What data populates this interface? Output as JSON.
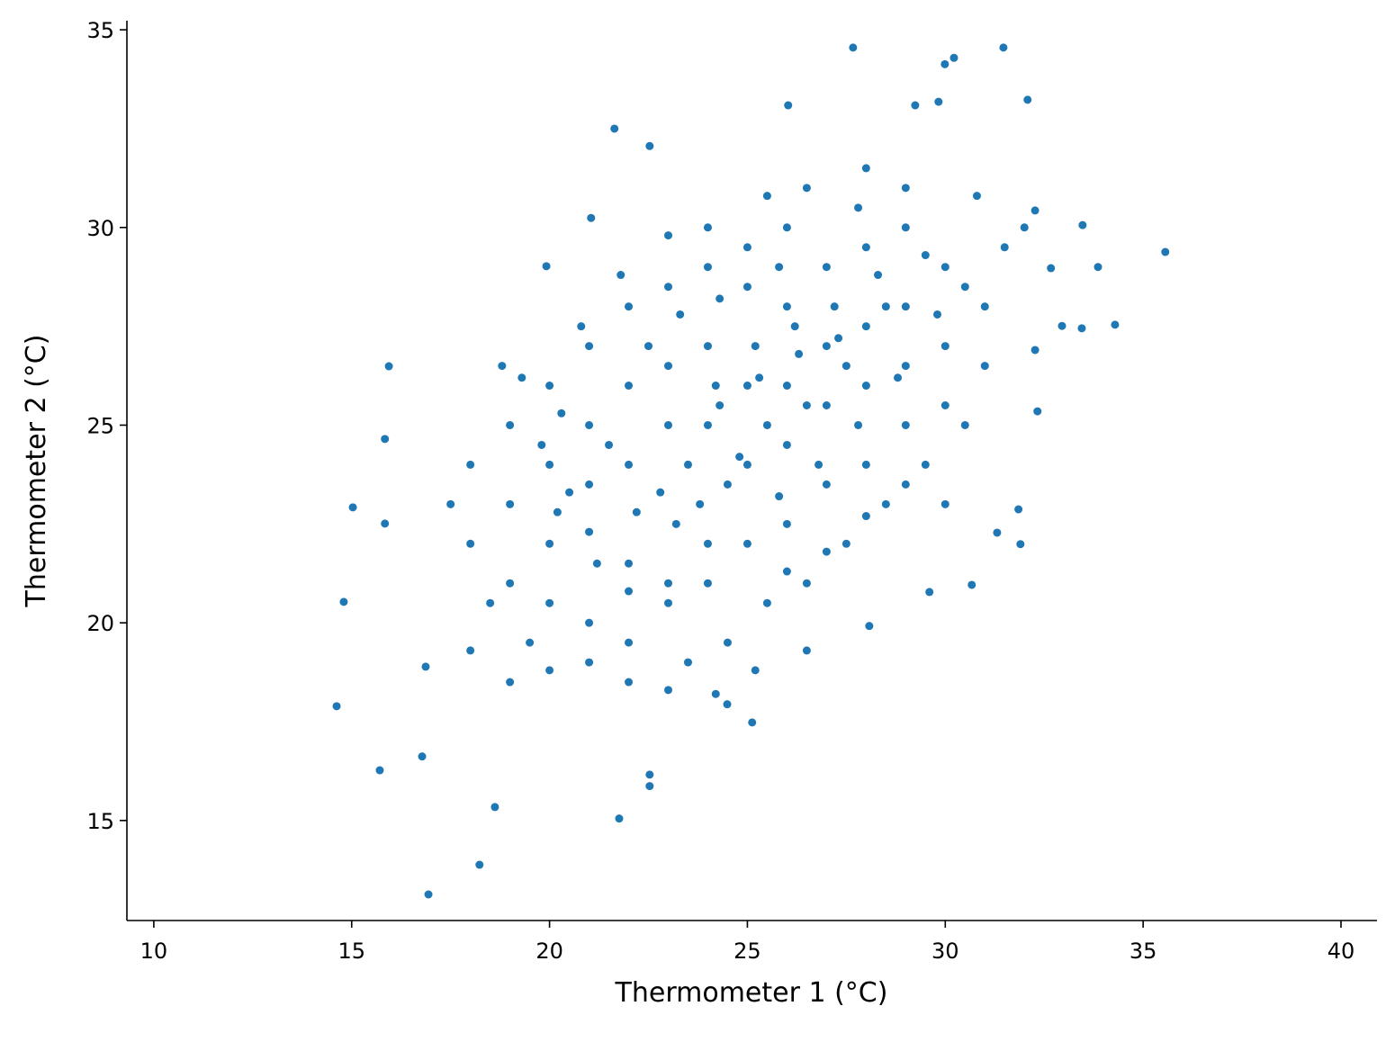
{
  "chart_data": {
    "type": "scatter",
    "xlabel": "Thermometer 1 (°C)",
    "ylabel": "Thermometer 2 (°C)",
    "color": "#1f77b4",
    "xlim": [
      9.32,
      40.91
    ],
    "ylim": [
      12.47,
      35.23
    ],
    "xticks": [
      10,
      15,
      20,
      25,
      30,
      35,
      40
    ],
    "yticks": [
      15,
      20,
      25,
      30,
      35
    ],
    "x": [
      27.67,
      31.47,
      30.22,
      29.99,
      32.08,
      35.56,
      34.29,
      33.86,
      33.47,
      21.64,
      26.03,
      22.53,
      14.62,
      14.8,
      15.03,
      15.94,
      15.84,
      15.84,
      15.71,
      16.78,
      16.94,
      18.23,
      18.62,
      16.87,
      21.76,
      22.53,
      22.53,
      30.67,
      33.45,
      32.95,
      32.27,
      21.05,
      19.92,
      25.12,
      24.49,
      28.08,
      29.6,
      31.9,
      31.85,
      31.31,
      32.33,
      32.27,
      32.67,
      29.83,
      29.24,
      20,
      21,
      22,
      23,
      24,
      25,
      26,
      27,
      28,
      29,
      24,
      23,
      22,
      25,
      26,
      27,
      28,
      29,
      30,
      26,
      25,
      24,
      23,
      22,
      21,
      20,
      19,
      18,
      19,
      20,
      21,
      22,
      23,
      24,
      25,
      26,
      27,
      28,
      29,
      30,
      31,
      27,
      28,
      29,
      26,
      25,
      24,
      23,
      22,
      21,
      20,
      19,
      18,
      17.5,
      18.5,
      19.5,
      21,
      22,
      23.5,
      24.5,
      25.5,
      26.5,
      27.5,
      28.5,
      29.5,
      30.5,
      31,
      30,
      29,
      28,
      26.5,
      25.5,
      24,
      23,
      22.5,
      23.5,
      24.5,
      25.5,
      26.5,
      27.5,
      28.5,
      24.2,
      25.2,
      26.2,
      27.2,
      23.2,
      22.2,
      21.2,
      20.2,
      24.8,
      25.8,
      26.8,
      27.8,
      28.8,
      29.8,
      30.5,
      31.5,
      32,
      21.5,
      20.5,
      19.8,
      22.8,
      23.8,
      24.3,
      25.3,
      26.3,
      27.3,
      28.3,
      22,
      21,
      20.3,
      19.3,
      18.8,
      20.8,
      21.8,
      23.3,
      24.3,
      25.8,
      27.8,
      29.5,
      30.8,
      26,
      27,
      28,
      29,
      30,
      23,
      24.2,
      25.2,
      26.5,
      20,
      19,
      18
    ],
    "y": [
      34.55,
      34.55,
      34.29,
      34.13,
      33.23,
      29.38,
      27.54,
      29.0,
      30.06,
      32.5,
      33.09,
      32.06,
      17.89,
      20.53,
      22.92,
      26.49,
      24.65,
      22.51,
      16.27,
      16.62,
      13.13,
      13.88,
      15.34,
      18.89,
      15.05,
      16.16,
      15.87,
      20.96,
      27.45,
      27.51,
      30.43,
      30.24,
      29.02,
      17.48,
      17.94,
      19.92,
      20.78,
      21.99,
      22.87,
      22.28,
      25.35,
      26.9,
      28.97,
      33.18,
      33.09,
      22,
      23.5,
      24,
      25,
      25,
      26,
      26,
      27,
      27.5,
      28,
      22,
      21,
      21.5,
      24,
      24.5,
      25.5,
      26,
      26.5,
      27,
      28,
      28.5,
      27,
      26.5,
      26,
      25,
      24,
      23,
      22,
      21,
      20.5,
      20,
      19.5,
      20.5,
      21,
      22,
      22.5,
      23.5,
      24,
      25,
      25.5,
      26.5,
      29,
      29.5,
      30,
      30,
      29.5,
      29,
      28.5,
      28,
      27,
      26,
      25,
      24,
      23,
      20.5,
      19.5,
      19,
      18.5,
      19,
      19.5,
      20.5,
      21,
      22,
      23,
      24,
      25,
      28,
      29,
      31,
      31.5,
      31,
      30.8,
      30,
      29.8,
      27,
      24,
      23.5,
      25,
      25.5,
      26.5,
      28,
      26,
      27,
      27.5,
      28,
      22.5,
      22.8,
      21.5,
      22.8,
      24.2,
      23.2,
      24,
      25,
      26.2,
      27.8,
      28.5,
      29.5,
      30,
      24.5,
      23.3,
      24.5,
      23.3,
      23,
      25.5,
      26.2,
      26.8,
      27.2,
      28.8,
      20.8,
      22.3,
      25.3,
      26.2,
      26.5,
      27.5,
      28.8,
      27.8,
      28.2,
      29,
      30.5,
      29.3,
      30.8,
      21.3,
      21.8,
      22.7,
      23.5,
      23,
      18.3,
      18.2,
      18.8,
      19.3,
      18.8,
      18.5,
      19.3
    ]
  }
}
